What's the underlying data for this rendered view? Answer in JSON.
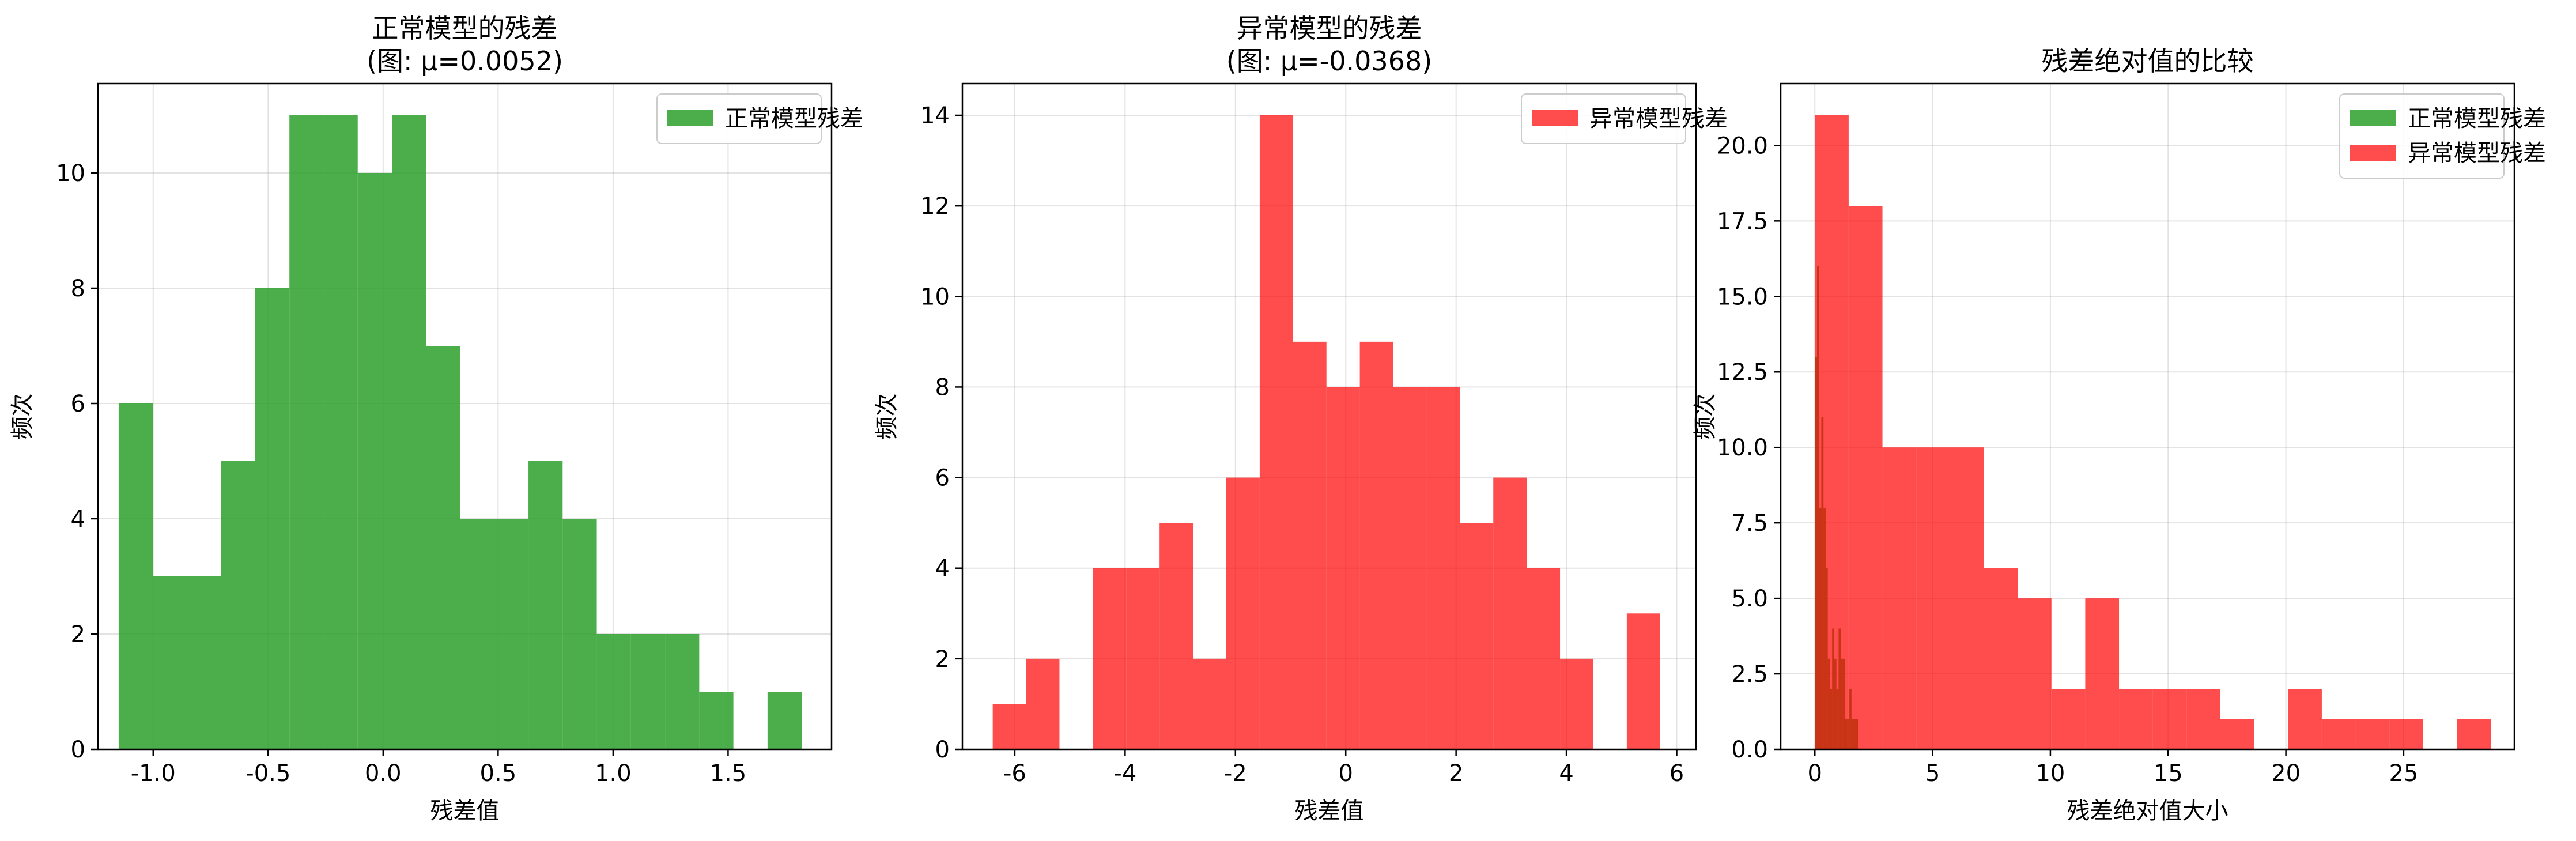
{
  "chart_data": [
    {
      "type": "bar",
      "title_lines": [
        "正常模型的残差",
        "(图: μ=0.0052)"
      ],
      "xlabel": "残差值",
      "ylabel": "频次",
      "xlim": [
        -1.24,
        1.95
      ],
      "ylim": [
        0,
        11.55
      ],
      "xticks": [
        -1.0,
        -0.5,
        0.0,
        0.5,
        1.0,
        1.5
      ],
      "xtick_labels": [
        "-1.0",
        "-0.5",
        "0.0",
        "0.5",
        "1.0",
        "1.5"
      ],
      "yticks": [
        0,
        2,
        4,
        6,
        8,
        10
      ],
      "ytick_labels": [
        "0",
        "2",
        "4",
        "6",
        "8",
        "10"
      ],
      "grid": true,
      "legend_position": "top-right",
      "series": [
        {
          "name": "正常模型残差",
          "color": "#2ca02c",
          "alpha": 0.85,
          "bin_start": -1.15,
          "bin_width": 0.1485,
          "counts": [
            6,
            3,
            3,
            5,
            8,
            11,
            11,
            10,
            11,
            7,
            4,
            4,
            5,
            4,
            2,
            2,
            2,
            1,
            0,
            1
          ]
        }
      ]
    },
    {
      "type": "bar",
      "title_lines": [
        "异常模型的残差",
        "(图: μ=-0.0368)"
      ],
      "xlabel": "残差值",
      "ylabel": "频次",
      "xlim": [
        -6.95,
        6.35
      ],
      "ylim": [
        0,
        14.7
      ],
      "xticks": [
        -6,
        -4,
        -2,
        0,
        2,
        4,
        6
      ],
      "xtick_labels": [
        "-6",
        "-4",
        "-2",
        "0",
        "2",
        "4",
        "6"
      ],
      "yticks": [
        0,
        2,
        4,
        6,
        8,
        10,
        12,
        14
      ],
      "ytick_labels": [
        "0",
        "2",
        "4",
        "6",
        "8",
        "10",
        "12",
        "14"
      ],
      "grid": true,
      "legend_position": "top-right",
      "series": [
        {
          "name": "异常模型残差",
          "color": "#ff0000",
          "alpha": 0.7,
          "bin_start": -6.4,
          "bin_width": 0.605,
          "counts": [
            1,
            2,
            0,
            4,
            4,
            5,
            2,
            6,
            14,
            9,
            8,
            9,
            8,
            8,
            5,
            6,
            4,
            2,
            0,
            3
          ]
        }
      ]
    },
    {
      "type": "bar",
      "title_lines": [
        "残差绝对值的比较"
      ],
      "xlabel": "残差绝对值大小",
      "ylabel": "频次",
      "xlim": [
        -1.45,
        29.7
      ],
      "ylim": [
        0,
        22.05
      ],
      "xticks": [
        0,
        5,
        10,
        15,
        20,
        25
      ],
      "xtick_labels": [
        "0",
        "5",
        "10",
        "15",
        "20",
        "25"
      ],
      "yticks": [
        0,
        2.5,
        5,
        7.5,
        10,
        12.5,
        15,
        17.5,
        20
      ],
      "ytick_labels": [
        "0.0",
        "2.5",
        "5.0",
        "7.5",
        "10.0",
        "12.5",
        "15.0",
        "17.5",
        "20.0"
      ],
      "grid": true,
      "legend_position": "top-right",
      "series": [
        {
          "name": "正常模型残差",
          "color": "#2ca02c",
          "alpha": 0.85,
          "bin_start": 0.0,
          "bin_width": 0.0915,
          "counts": [
            13,
            16,
            8,
            11,
            8,
            6,
            3,
            2,
            4,
            3,
            2,
            4,
            3,
            3,
            1,
            1,
            2,
            1,
            1,
            1
          ]
        },
        {
          "name": "异常模型残差",
          "color": "#ff0000",
          "alpha": 0.7,
          "bin_start": 0.0,
          "bin_width": 1.435,
          "counts": [
            21,
            18,
            10,
            10,
            10,
            6,
            5,
            2,
            5,
            2,
            2,
            2,
            1,
            0,
            2,
            1,
            1,
            1,
            0,
            1
          ]
        }
      ]
    }
  ]
}
